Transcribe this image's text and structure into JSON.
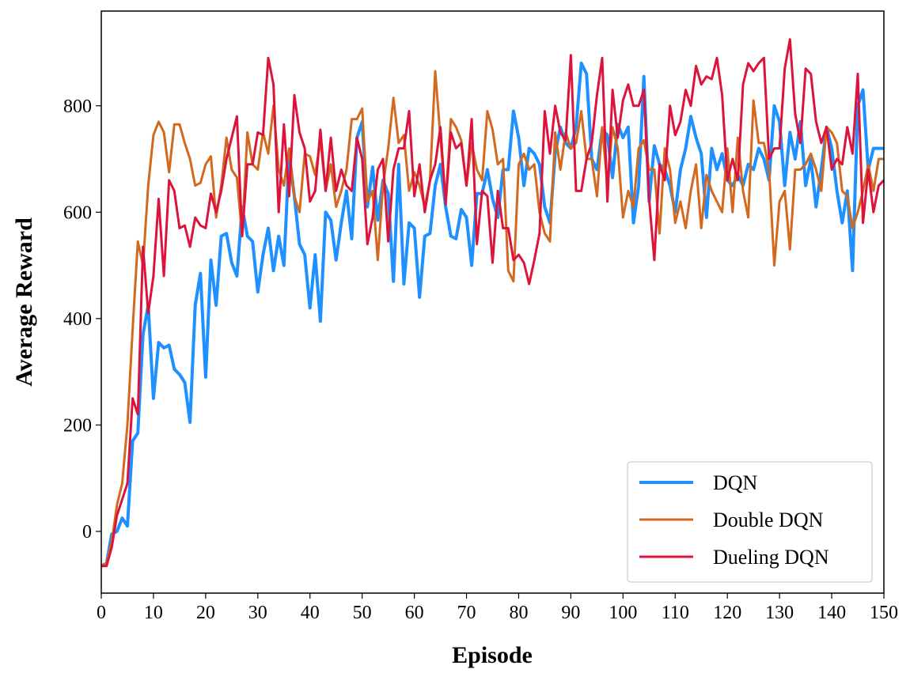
{
  "chart_data": {
    "type": "line",
    "title": "",
    "xlabel": "Episode",
    "ylabel": "Average Reward",
    "xlim": [
      0,
      150
    ],
    "ylim": [
      -116,
      978
    ],
    "xticks": [
      0,
      10,
      20,
      30,
      40,
      50,
      60,
      70,
      80,
      90,
      100,
      110,
      120,
      130,
      140,
      150
    ],
    "yticks": [
      0,
      200,
      400,
      600,
      800
    ],
    "grid": false,
    "legend_position": "bottom-right",
    "series": [
      {
        "name": "DQN",
        "color": "#1E90FF",
        "values": [
          -65,
          -60,
          -5,
          0,
          25,
          10,
          170,
          185,
          370,
          425,
          250,
          355,
          345,
          350,
          305,
          295,
          280,
          205,
          425,
          485,
          290,
          510,
          425,
          555,
          560,
          505,
          480,
          610,
          555,
          545,
          450,
          520,
          570,
          490,
          555,
          500,
          710,
          630,
          540,
          520,
          420,
          520,
          395,
          600,
          585,
          510,
          580,
          640,
          550,
          740,
          770,
          610,
          685,
          585,
          660,
          635,
          470,
          690,
          465,
          580,
          570,
          440,
          555,
          560,
          650,
          690,
          610,
          555,
          550,
          605,
          590,
          500,
          635,
          635,
          680,
          625,
          590,
          680,
          680,
          790,
          740,
          650,
          720,
          710,
          690,
          610,
          580,
          710,
          760,
          730,
          720,
          760,
          880,
          860,
          700,
          680,
          755,
          745,
          665,
          765,
          740,
          760,
          580,
          650,
          855,
          620,
          725,
          690,
          680,
          650,
          600,
          680,
          720,
          780,
          740,
          710,
          590,
          720,
          680,
          710,
          660,
          650,
          670,
          650,
          690,
          680,
          720,
          700,
          660,
          800,
          770,
          650,
          750,
          700,
          770,
          650,
          700,
          610,
          680,
          760,
          720,
          640,
          580,
          640,
          490,
          800,
          830,
          680,
          720,
          720,
          720
        ]
      },
      {
        "name": "Double DQN",
        "color": "#D2691E",
        "values": [
          -65,
          -60,
          -20,
          50,
          90,
          200,
          380,
          545,
          500,
          650,
          745,
          770,
          750,
          675,
          765,
          765,
          730,
          700,
          650,
          655,
          690,
          705,
          590,
          650,
          740,
          680,
          665,
          555,
          750,
          690,
          680,
          750,
          710,
          800,
          680,
          650,
          720,
          630,
          600,
          710,
          705,
          670,
          735,
          640,
          690,
          610,
          640,
          680,
          775,
          775,
          795,
          620,
          640,
          510,
          650,
          720,
          815,
          730,
          745,
          640,
          675,
          650,
          610,
          660,
          865,
          740,
          620,
          775,
          760,
          735,
          650,
          730,
          680,
          660,
          790,
          755,
          690,
          700,
          490,
          470,
          690,
          710,
          680,
          690,
          600,
          560,
          545,
          750,
          680,
          750,
          720,
          730,
          790,
          700,
          700,
          630,
          760,
          650,
          760,
          720,
          590,
          640,
          610,
          720,
          735,
          680,
          680,
          560,
          720,
          680,
          580,
          620,
          570,
          640,
          690,
          570,
          670,
          640,
          620,
          600,
          720,
          600,
          740,
          640,
          590,
          810,
          730,
          730,
          680,
          500,
          620,
          640,
          530,
          680,
          680,
          690,
          710,
          680,
          640,
          760,
          750,
          730,
          640,
          630,
          570,
          600,
          640,
          690,
          640,
          700,
          700
        ]
      },
      {
        "name": "Dueling DQN",
        "color": "#DC143C",
        "values": [
          -65,
          -65,
          -30,
          30,
          60,
          90,
          250,
          220,
          535,
          410,
          480,
          625,
          480,
          660,
          640,
          570,
          575,
          535,
          590,
          575,
          570,
          635,
          600,
          640,
          700,
          740,
          780,
          555,
          690,
          690,
          750,
          745,
          890,
          840,
          600,
          765,
          630,
          820,
          750,
          720,
          620,
          640,
          755,
          640,
          740,
          640,
          680,
          650,
          640,
          740,
          700,
          540,
          590,
          680,
          700,
          545,
          680,
          720,
          720,
          790,
          630,
          690,
          600,
          660,
          690,
          760,
          615,
          750,
          720,
          730,
          650,
          775,
          540,
          640,
          630,
          505,
          640,
          570,
          570,
          510,
          520,
          505,
          465,
          510,
          560,
          790,
          710,
          800,
          750,
          735,
          895,
          640,
          640,
          700,
          730,
          820,
          890,
          620,
          830,
          740,
          810,
          840,
          800,
          800,
          830,
          625,
          510,
          690,
          660,
          800,
          745,
          770,
          830,
          800,
          875,
          840,
          855,
          850,
          890,
          820,
          660,
          700,
          660,
          840,
          880,
          865,
          880,
          890,
          700,
          720,
          720,
          870,
          925,
          785,
          730,
          870,
          860,
          770,
          730,
          760,
          680,
          700,
          690,
          760,
          710,
          860,
          580,
          680,
          600,
          650,
          660
        ]
      }
    ]
  }
}
